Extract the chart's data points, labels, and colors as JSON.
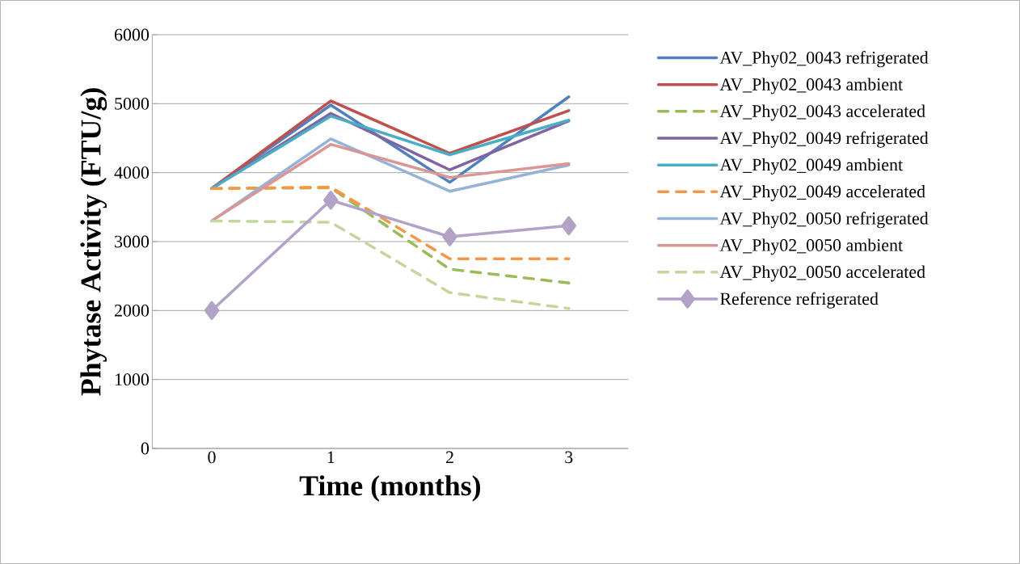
{
  "chart_data": {
    "type": "line",
    "xlabel": "Time (months)",
    "ylabel": "Phytase Activity (FTU/g)",
    "categories": [
      "0",
      "1",
      "2",
      "3"
    ],
    "ylim": [
      0,
      6000
    ],
    "yticks": [
      0,
      1000,
      2000,
      3000,
      4000,
      5000,
      6000
    ],
    "grid": "y",
    "legend": "right",
    "series": [
      {
        "name": "AV_Phy02_0043 refrigerated",
        "color": "#4f81bd",
        "line_style": "solid",
        "values": [
          3770,
          4980,
          3860,
          5100
        ]
      },
      {
        "name": "AV_Phy02_0043 ambient",
        "color": "#c0504d",
        "line_style": "solid",
        "values": [
          3770,
          5040,
          4280,
          4900
        ]
      },
      {
        "name": "AV_Phy02_0043 accelerated",
        "color": "#9bbb59",
        "line_style": "dashed",
        "values": [
          3770,
          3780,
          2600,
          2400
        ]
      },
      {
        "name": "AV_Phy02_0049 refrigerated",
        "color": "#8064a2",
        "line_style": "solid",
        "values": [
          3770,
          4860,
          4040,
          4750
        ]
      },
      {
        "name": "AV_Phy02_0049 ambient",
        "color": "#4bacc6",
        "line_style": "solid",
        "values": [
          3770,
          4820,
          4260,
          4760
        ]
      },
      {
        "name": "AV_Phy02_0049 accelerated",
        "color": "#f79646",
        "line_style": "dashed",
        "values": [
          3770,
          3790,
          2750,
          2750
        ]
      },
      {
        "name": "AV_Phy02_0050 refrigerated",
        "color": "#95b3d7",
        "line_style": "solid",
        "values": [
          3300,
          4490,
          3730,
          4110
        ]
      },
      {
        "name": "AV_Phy02_0050 ambient",
        "color": "#d99694",
        "line_style": "solid",
        "values": [
          3300,
          4410,
          3930,
          4130
        ]
      },
      {
        "name": "AV_Phy02_0050 accelerated",
        "color": "#c3d69b",
        "line_style": "dashed",
        "values": [
          3300,
          3280,
          2260,
          2030
        ]
      },
      {
        "name": "Reference refrigerated",
        "color": "#b3a2c7",
        "line_style": "solid",
        "marker": "diamond",
        "values": [
          2000,
          3600,
          3070,
          3230
        ]
      }
    ]
  }
}
